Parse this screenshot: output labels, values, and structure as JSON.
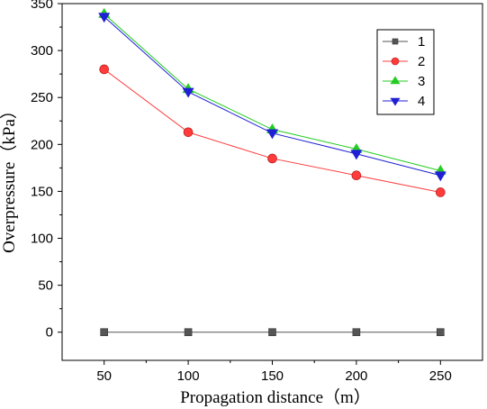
{
  "chart_data": {
    "type": "line",
    "xlabel": "Propagation distance（m）",
    "ylabel": "Overpressure（kPa）",
    "xlim": [
      25,
      275
    ],
    "ylim": [
      -30,
      350
    ],
    "x": [
      50,
      100,
      150,
      200,
      250
    ],
    "x_ticks": [
      50,
      100,
      150,
      200,
      250
    ],
    "y_ticks": [
      0,
      50,
      100,
      150,
      200,
      250,
      300,
      350
    ],
    "grid": false,
    "legend_position": "top-right",
    "series": [
      {
        "name": "1",
        "color": "#555555",
        "marker": "square",
        "values": [
          0,
          0,
          0,
          0,
          0
        ]
      },
      {
        "name": "2",
        "color": "#ff3b3b",
        "marker": "circle",
        "values": [
          280,
          213,
          185,
          167,
          149
        ]
      },
      {
        "name": "3",
        "color": "#22cc22",
        "marker": "triangle-up",
        "values": [
          339,
          259,
          216,
          195,
          172
        ]
      },
      {
        "name": "4",
        "color": "#1f1fd6",
        "marker": "triangle-down",
        "values": [
          336,
          256,
          212,
          190,
          167
        ]
      }
    ]
  }
}
